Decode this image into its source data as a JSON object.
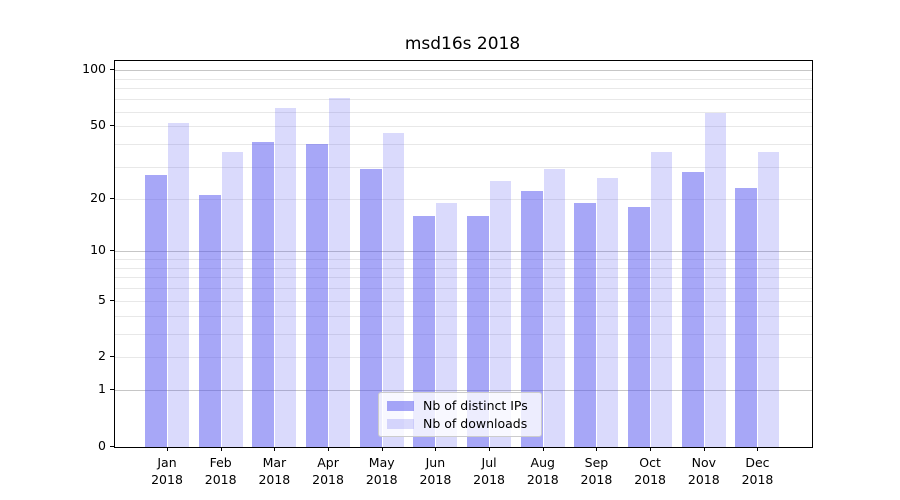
{
  "figure": {
    "background": "#ffffff"
  },
  "chart_data": {
    "type": "bar",
    "title": "msd16s 2018",
    "categories": [
      "Jan",
      "Feb",
      "Mar",
      "Apr",
      "May",
      "Jun",
      "Jul",
      "Aug",
      "Sep",
      "Oct",
      "Nov",
      "Dec"
    ],
    "category_year": "2018",
    "series": [
      {
        "name": "Nb of distinct IPs",
        "color": "#5050f0",
        "alpha": 0.5,
        "values": [
          27,
          21,
          41,
          40,
          29,
          16,
          16,
          22,
          19,
          18,
          28,
          23
        ]
      },
      {
        "name": "Nb of downloads",
        "color": "#5050f0",
        "alpha": 0.21,
        "values": [
          52,
          36,
          63,
          71,
          46,
          19,
          25,
          29,
          26,
          36,
          59,
          36
        ]
      }
    ],
    "xlabel": "",
    "ylabel": "",
    "yscale": "log10(1+v)",
    "ylim": [
      0,
      112
    ],
    "yticks": [
      100,
      50,
      20,
      10,
      5,
      2,
      1,
      0
    ],
    "grid": true,
    "gridlines_minor": [
      2,
      3,
      4,
      5,
      6,
      7,
      8,
      9,
      20,
      30,
      40,
      50,
      60,
      70,
      80,
      90
    ],
    "gridlines_major": [
      1,
      10,
      100
    ],
    "legend_position": "lower center"
  },
  "colors": {
    "gridline_minor": "#e8e8e8",
    "gridline_major": "#c6c6c6",
    "axis": "#000000",
    "legend_border": "#cccccc"
  }
}
